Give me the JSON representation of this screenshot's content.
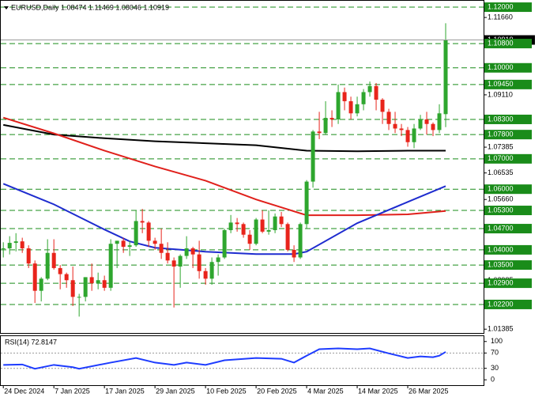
{
  "chart_data": {
    "type": "candlestick",
    "title": "EURUSD,Daily  1.08474 1.11469 1.08046 1.10919",
    "xticks": [
      {
        "value": 0,
        "label": "24 Dec 2024"
      },
      {
        "value": 8,
        "label": "7 Jan 2025"
      },
      {
        "value": 16,
        "label": "17 Jan 2025"
      },
      {
        "value": 24,
        "label": "29 Jan 2025"
      },
      {
        "value": 32,
        "label": "10 Feb 2025"
      },
      {
        "value": 40,
        "label": "20 Feb 2025"
      },
      {
        "value": 48,
        "label": "4 Mar 2025"
      },
      {
        "value": 56,
        "label": "14 Mar 2025"
      },
      {
        "value": 64,
        "label": "26 Mar 2025"
      }
    ],
    "xlim": [
      -0.4,
      76
    ],
    "ylim": [
      1.0126,
      1.1221
    ],
    "yticks": [
      {
        "value": 1.1166,
        "label": "1.11660"
      },
      {
        "value": 1.0911,
        "label": "1.09110"
      },
      {
        "value": 1.07385,
        "label": "1.07385"
      },
      {
        "value": 1.06535,
        "label": "1.06535"
      },
      {
        "value": 1.0566,
        "label": "1.05660"
      },
      {
        "value": 1.02985,
        "label": "1.02985"
      },
      {
        "value": 1.01385,
        "label": "1.01385"
      }
    ],
    "levels": [
      {
        "value": 1.12,
        "label": "1.12000"
      },
      {
        "value": 1.1,
        "label": "1.10000"
      },
      {
        "value": 1.0945,
        "label": "1.09450"
      },
      {
        "value": 1.083,
        "label": "1.08300"
      },
      {
        "value": 1.078,
        "label": "1.07800"
      },
      {
        "value": 1.07,
        "label": "1.07000"
      },
      {
        "value": 1.06,
        "label": "1.06000"
      },
      {
        "value": 1.053,
        "label": "1.05300"
      },
      {
        "value": 1.047,
        "label": "1.04700"
      },
      {
        "value": 1.04,
        "label": "1.04000"
      },
      {
        "value": 1.035,
        "label": "1.03500"
      },
      {
        "value": 1.029,
        "label": "1.02900"
      },
      {
        "value": 1.022,
        "label": "1.02200"
      },
      {
        "value": 1.108,
        "label": "1.10800"
      }
    ],
    "level_color": "#1a8c1a",
    "up_color": "#2ea62e",
    "down_color": "#e8241b",
    "open": [
      1.0405,
      1.0405,
      1.0423,
      1.0428,
      1.0405,
      1.0355,
      1.0265,
      1.0305,
      1.039,
      1.034,
      1.032,
      1.03,
      1.0245,
      1.0245,
      1.031,
      1.029,
      1.03,
      1.0275,
      1.042,
      1.043,
      1.041,
      1.0415,
      1.0495,
      1.049,
      1.043,
      1.042,
      1.039,
      1.0365,
      1.0345,
      1.038,
      1.0405,
      1.0385,
      1.033,
      1.0305,
      1.036,
      1.0375,
      1.0465,
      1.049,
      1.0485,
      1.045,
      1.042,
      1.05,
      1.046,
      1.0465,
      1.051,
      1.0485,
      1.04,
      1.0375,
      1.0485,
      1.0625,
      1.079,
      1.0785,
      1.0835,
      1.083,
      1.092,
      1.089,
      1.085,
      1.088,
      1.092,
      1.094,
      1.0895,
      1.0855,
      1.0815,
      1.08,
      1.0795,
      1.0755,
      1.08,
      1.083,
      1.0815,
      1.0795,
      1.08474
    ],
    "high": [
      1.0425,
      1.0445,
      1.0455,
      1.044,
      1.0415,
      1.0365,
      1.031,
      1.0435,
      1.0435,
      1.035,
      1.0325,
      1.0345,
      1.0255,
      1.031,
      1.0355,
      1.0325,
      1.0315,
      1.0435,
      1.043,
      1.044,
      1.043,
      1.053,
      1.0535,
      1.0495,
      1.044,
      1.047,
      1.0425,
      1.0375,
      1.0385,
      1.0445,
      1.041,
      1.043,
      1.034,
      1.0375,
      1.0385,
      1.047,
      1.0515,
      1.0505,
      1.049,
      1.0465,
      1.0505,
      1.053,
      1.053,
      1.052,
      1.0525,
      1.049,
      1.0415,
      1.049,
      1.063,
      1.0795,
      1.0855,
      1.089,
      1.086,
      1.0945,
      1.0935,
      1.0905,
      1.0905,
      1.093,
      1.0955,
      1.095,
      1.09,
      1.0865,
      1.0855,
      1.0815,
      1.0805,
      1.0815,
      1.0845,
      1.0855,
      1.082,
      1.088,
      1.11469
    ],
    "low": [
      1.0375,
      1.0385,
      1.0395,
      1.039,
      1.034,
      1.0225,
      1.023,
      1.03,
      1.0335,
      1.027,
      1.0275,
      1.0215,
      1.018,
      1.023,
      1.0265,
      1.027,
      1.0265,
      1.0265,
      1.034,
      1.039,
      1.038,
      1.041,
      1.0455,
      1.041,
      1.04,
      1.037,
      1.0355,
      1.021,
      1.0275,
      1.037,
      1.034,
      1.0305,
      1.0285,
      1.0285,
      1.0315,
      1.037,
      1.0455,
      1.046,
      1.044,
      1.04,
      1.0415,
      1.0455,
      1.045,
      1.0455,
      1.0475,
      1.0395,
      1.036,
      1.037,
      1.047,
      1.0605,
      1.0765,
      1.078,
      1.0805,
      1.0815,
      1.086,
      1.083,
      1.084,
      1.086,
      1.0905,
      1.086,
      1.0815,
      1.0795,
      1.0785,
      1.0775,
      1.074,
      1.0735,
      1.0795,
      1.078,
      1.0775,
      1.0785,
      1.08046
    ],
    "close": [
      1.0405,
      1.0423,
      1.0428,
      1.0405,
      1.0355,
      1.0265,
      1.0305,
      1.039,
      1.034,
      1.032,
      1.03,
      1.0245,
      1.0245,
      1.031,
      1.029,
      1.03,
      1.0275,
      1.042,
      1.043,
      1.041,
      1.0415,
      1.0495,
      1.049,
      1.043,
      1.042,
      1.039,
      1.0365,
      1.0345,
      1.038,
      1.0405,
      1.0385,
      1.033,
      1.0305,
      1.036,
      1.0375,
      1.0465,
      1.049,
      1.0485,
      1.045,
      1.042,
      1.05,
      1.046,
      1.0465,
      1.051,
      1.0485,
      1.04,
      1.0375,
      1.0485,
      1.0625,
      1.079,
      1.0785,
      1.0835,
      1.083,
      1.092,
      1.089,
      1.085,
      1.088,
      1.092,
      1.094,
      1.0895,
      1.0855,
      1.0815,
      1.08,
      1.0795,
      1.0755,
      1.08,
      1.083,
      1.0815,
      1.0795,
      1.085,
      1.10919
    ],
    "price_line_color": "#9a9a9a",
    "series": [
      {
        "color": "#000000",
        "x": [
          0,
          8,
          16,
          24,
          40,
          48,
          56,
          64,
          70
        ],
        "values": [
          1.0812,
          1.078,
          1.0768,
          1.0758,
          1.0745,
          1.0727,
          1.0725,
          1.0727,
          1.0727
        ]
      },
      {
        "color": "#e0201b",
        "x": [
          0,
          8,
          16,
          24,
          32,
          40,
          44,
          48,
          56,
          64,
          70
        ],
        "values": [
          1.0836,
          1.0784,
          1.0727,
          1.0675,
          1.0628,
          1.0566,
          1.054,
          1.0514,
          1.0514,
          1.0517,
          1.0528
        ]
      },
      {
        "color": "#1e2ccf",
        "x": [
          0,
          8,
          16,
          20,
          24,
          32,
          40,
          46,
          48,
          56,
          64,
          70
        ],
        "values": [
          1.0618,
          1.055,
          1.0467,
          1.0428,
          1.0407,
          1.0394,
          1.0386,
          1.0386,
          1.0394,
          1.0488,
          1.0558,
          1.061
        ]
      }
    ],
    "rsi": {
      "label": "RSI(14) 72.8147",
      "color": "#1e3cff",
      "ylim": [
        -14,
        114
      ],
      "yticks": [
        100,
        70,
        30,
        0
      ],
      "levels": [
        70,
        30
      ],
      "x": [
        0,
        3,
        5,
        8,
        11,
        12,
        17,
        21,
        24,
        27,
        29,
        32,
        35,
        40,
        44,
        46,
        48,
        50,
        53,
        56,
        58,
        61,
        64,
        66,
        68,
        69,
        70
      ],
      "values": [
        39,
        40,
        29,
        39,
        33,
        29,
        45,
        57,
        45,
        39,
        45,
        39,
        51,
        57,
        55,
        45,
        63,
        80,
        82,
        80,
        82,
        69,
        57,
        61,
        59,
        63,
        72.8147
      ]
    }
  }
}
